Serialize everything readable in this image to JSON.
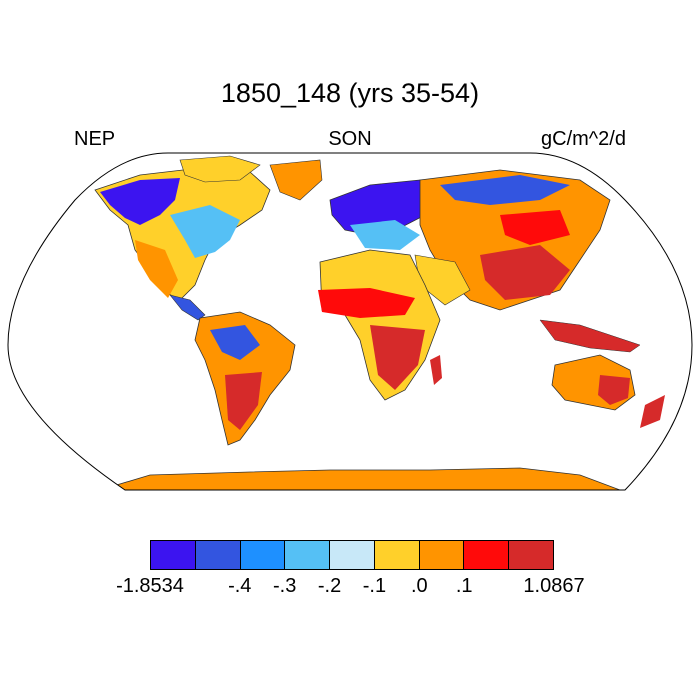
{
  "title": "1850_148 (yrs 35-54)",
  "left_label": "NEP",
  "center_label": "SON",
  "units_label": "gC/m^2/d",
  "colorbar": {
    "colors": [
      "#3c14f0",
      "#3355e0",
      "#1e90ff",
      "#55c0f5",
      "#c8e8f8",
      "#ffd02a",
      "#ff9400",
      "#ff0a0a",
      "#d62a2a"
    ],
    "labels": [
      "-1.8534",
      "-.4",
      "-.3",
      "-.2",
      "-.1",
      ".0",
      ".1",
      "1.0867"
    ]
  },
  "map": {
    "projection": "Robinson",
    "variable": "NEP",
    "season": "SON"
  }
}
